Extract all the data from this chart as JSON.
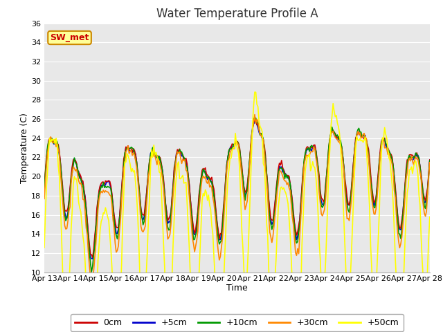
{
  "title": "Water Temperature Profile A",
  "xlabel": "Time",
  "ylabel": "Temperature (C)",
  "ylim": [
    10,
    36
  ],
  "yticks": [
    10,
    12,
    14,
    16,
    18,
    20,
    22,
    24,
    26,
    28,
    30,
    32,
    34,
    36
  ],
  "xtick_labels": [
    "Apr 13",
    "Apr 14",
    "Apr 15",
    "Apr 16",
    "Apr 17",
    "Apr 18",
    "Apr 19",
    "Apr 20",
    "Apr 21",
    "Apr 22",
    "Apr 23",
    "Apr 24",
    "Apr 25",
    "Apr 26",
    "Apr 27",
    "Apr 28"
  ],
  "series_colors": [
    "#cc0000",
    "#0000cc",
    "#009900",
    "#ff8800",
    "#ffff00"
  ],
  "series_labels": [
    "0cm",
    "+5cm",
    "+10cm",
    "+30cm",
    "+50cm"
  ],
  "annotation_text": "SW_met",
  "annotation_color": "#cc0000",
  "annotation_bg": "#ffff99",
  "annotation_border": "#cc8800",
  "fig_bg": "#ffffff",
  "plot_bg": "#e8e8e8",
  "grid_color": "#ffffff",
  "title_fontsize": 12,
  "axis_fontsize": 9,
  "tick_fontsize": 8,
  "legend_fontsize": 9
}
